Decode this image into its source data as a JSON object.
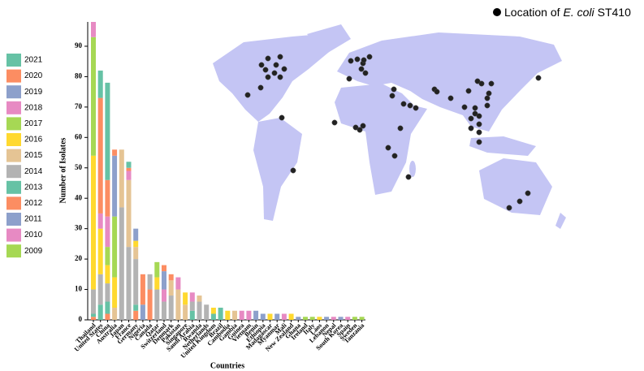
{
  "chart_data": {
    "type": "bar",
    "stacked": true,
    "x_label": "Countries",
    "y_label": "Number of Isolates",
    "ylim": [
      0,
      98
    ],
    "yticks": [
      0,
      10,
      20,
      30,
      40,
      50,
      60,
      70,
      80,
      90
    ],
    "map_legend": [
      "Location of",
      "E. coli",
      "ST410"
    ],
    "categories": [
      "Thailand",
      "United States",
      "China",
      "Australia",
      "Japan",
      "France",
      "Germany",
      "Nigeria",
      "Canada",
      "Qatar",
      "Switzerland",
      "Denmark",
      "Pakistan",
      "Singapore",
      "Saudi Arabia",
      "Rwanda",
      "Netherlands",
      "United Kingdom",
      "Brazil",
      "Cambodia",
      "Gambia",
      "Guinea",
      "Vietnam",
      "Benin",
      "Ethiopia",
      "Madagascar",
      "Myanmar",
      "Mali",
      "New Zealand",
      "Ghana",
      "Ireland",
      "Italy",
      "Laos",
      "Lebanon",
      "Nepal",
      "South Korea",
      "Spain",
      "Sweden",
      "Tanzania"
    ],
    "series": [
      {
        "name": "2009",
        "color": "#a6d854",
        "values": [
          0,
          0,
          0,
          0,
          0,
          0,
          0,
          0,
          0,
          0,
          0,
          0,
          0,
          0,
          0,
          0,
          0,
          0,
          0,
          0,
          0,
          0,
          0,
          0,
          0,
          0,
          0,
          0,
          0,
          0,
          0,
          0,
          0,
          0,
          0,
          0,
          0,
          0,
          0
        ]
      },
      {
        "name": "2010",
        "color": "#e78ac3",
        "values": [
          0,
          0,
          0,
          0,
          0,
          0,
          0,
          0,
          0,
          0,
          0,
          0,
          0,
          0,
          0,
          0,
          0,
          0,
          0,
          0,
          0,
          0,
          0,
          0,
          0,
          0,
          0,
          0,
          0,
          0,
          0,
          0,
          0,
          0,
          0,
          0,
          0,
          0,
          0
        ]
      },
      {
        "name": "2011",
        "color": "#8da0cb",
        "values": [
          0,
          0,
          0,
          0,
          0,
          0,
          0,
          5,
          0,
          0,
          0,
          0,
          0,
          0,
          0,
          0,
          0,
          0,
          0,
          0,
          0,
          0,
          0,
          0,
          2,
          0,
          0,
          0,
          0,
          0,
          0,
          0,
          0,
          0,
          0,
          0,
          0,
          0,
          0
        ]
      },
      {
        "name": "2012",
        "color": "#fc8d62",
        "values": [
          1,
          0,
          2,
          0,
          0,
          0,
          3,
          10,
          10,
          0,
          0,
          0,
          0,
          0,
          0,
          0,
          0,
          0,
          0,
          0,
          0,
          0,
          0,
          0,
          0,
          0,
          0,
          0,
          0,
          0,
          0,
          0,
          0,
          0,
          0,
          0,
          0,
          0,
          0
        ]
      },
      {
        "name": "2013",
        "color": "#66c2a5",
        "values": [
          1,
          5,
          4,
          0,
          0,
          0,
          2,
          0,
          0,
          0,
          0,
          0,
          0,
          0,
          3,
          0,
          0,
          2,
          4,
          0,
          0,
          0,
          0,
          0,
          0,
          0,
          0,
          0,
          0,
          0,
          0,
          0,
          0,
          0,
          0,
          0,
          0,
          0,
          0
        ]
      },
      {
        "name": "2014",
        "color": "#b3b3b3",
        "values": [
          8,
          10,
          6,
          0,
          37,
          24,
          15,
          0,
          5,
          10,
          6,
          8,
          0,
          0,
          3,
          6,
          5,
          0,
          0,
          0,
          0,
          0,
          0,
          0,
          0,
          0,
          0,
          0,
          0,
          0,
          0,
          0,
          0,
          0,
          0,
          0,
          0,
          0,
          0
        ]
      },
      {
        "name": "2015",
        "color": "#e5c494",
        "values": [
          0,
          0,
          0,
          4,
          19,
          22,
          4,
          0,
          0,
          0,
          0,
          5,
          10,
          5,
          0,
          2,
          0,
          0,
          0,
          0,
          3,
          0,
          0,
          0,
          0,
          0,
          0,
          0,
          0,
          0,
          0,
          0,
          0,
          0,
          0,
          0,
          0,
          0,
          0
        ]
      },
      {
        "name": "2016",
        "color": "#ffd92f",
        "values": [
          44,
          15,
          6,
          10,
          0,
          0,
          2,
          0,
          0,
          4,
          0,
          0,
          0,
          4,
          0,
          0,
          0,
          2,
          0,
          3,
          0,
          0,
          0,
          0,
          0,
          2,
          0,
          0,
          2,
          0,
          0,
          0,
          1,
          0,
          0,
          0,
          0,
          0,
          0
        ]
      },
      {
        "name": "2017",
        "color": "#a6d854",
        "values": [
          39,
          0,
          6,
          20,
          0,
          0,
          0,
          0,
          0,
          5,
          0,
          0,
          0,
          0,
          0,
          0,
          0,
          0,
          0,
          0,
          0,
          0,
          0,
          0,
          0,
          0,
          0,
          0,
          0,
          0,
          1,
          1,
          0,
          0,
          0,
          0,
          0,
          1,
          1
        ]
      },
      {
        "name": "2018",
        "color": "#e78ac3",
        "values": [
          5,
          5,
          10,
          0,
          0,
          3,
          0,
          0,
          0,
          0,
          4,
          0,
          4,
          0,
          3,
          0,
          0,
          0,
          0,
          0,
          0,
          3,
          3,
          0,
          0,
          0,
          0,
          2,
          0,
          0,
          0,
          0,
          0,
          0,
          1,
          0,
          1,
          0,
          0
        ]
      },
      {
        "name": "2019",
        "color": "#8da0cb",
        "values": [
          0,
          0,
          0,
          20,
          0,
          0,
          4,
          0,
          0,
          0,
          6,
          0,
          0,
          0,
          0,
          0,
          0,
          0,
          0,
          0,
          0,
          0,
          0,
          3,
          0,
          0,
          2,
          0,
          0,
          1,
          0,
          0,
          0,
          1,
          0,
          1,
          0,
          0,
          0
        ]
      },
      {
        "name": "2020",
        "color": "#fc8d62",
        "values": [
          0,
          38,
          12,
          2,
          0,
          1,
          0,
          0,
          0,
          0,
          2,
          2,
          0,
          0,
          0,
          0,
          0,
          0,
          0,
          0,
          0,
          0,
          0,
          0,
          0,
          0,
          0,
          0,
          0,
          0,
          0,
          0,
          0,
          0,
          0,
          0,
          0,
          0,
          0
        ]
      },
      {
        "name": "2021",
        "color": "#66c2a5",
        "values": [
          0,
          9,
          32,
          0,
          0,
          2,
          0,
          0,
          0,
          0,
          0,
          0,
          0,
          0,
          0,
          0,
          0,
          0,
          0,
          0,
          0,
          0,
          0,
          0,
          0,
          0,
          0,
          0,
          0,
          0,
          0,
          0,
          0,
          0,
          0,
          0,
          0,
          0,
          0
        ]
      }
    ]
  }
}
